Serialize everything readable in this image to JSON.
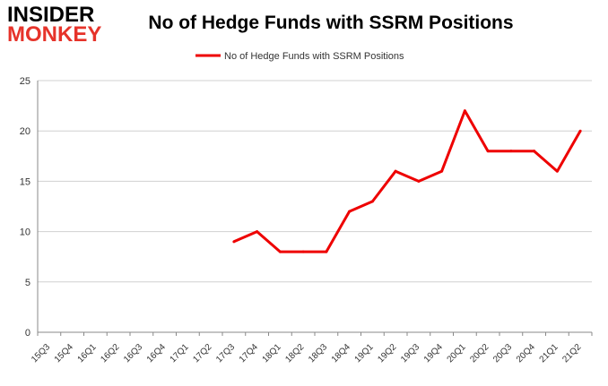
{
  "logo": {
    "line1": "INSIDER",
    "line2": "MONKEY"
  },
  "colors": {
    "series": "#ee0000",
    "logo_red": "#e6332a",
    "grid": "#d0d0d0",
    "axis": "#888888"
  },
  "chart_data": {
    "type": "line",
    "title": "No of Hedge Funds with SSRM Positions",
    "xlabel": "",
    "ylabel": "",
    "ylim": [
      0,
      25
    ],
    "yticks": [
      0,
      5,
      10,
      15,
      20,
      25
    ],
    "grid": true,
    "legend_position": "top-center",
    "categories": [
      "15Q3",
      "15Q4",
      "16Q1",
      "16Q2",
      "16Q3",
      "16Q4",
      "17Q1",
      "17Q2",
      "17Q3",
      "17Q4",
      "18Q1",
      "18Q2",
      "18Q3",
      "18Q4",
      "19Q1",
      "19Q2",
      "19Q3",
      "19Q4",
      "20Q1",
      "20Q2",
      "20Q3",
      "20Q4",
      "21Q1",
      "21Q2"
    ],
    "series": [
      {
        "name": "No of Hedge Funds with SSRM Positions",
        "values": [
          null,
          null,
          null,
          null,
          null,
          null,
          null,
          null,
          9,
          10,
          8,
          8,
          8,
          12,
          13,
          16,
          15,
          16,
          22,
          18,
          18,
          18,
          16,
          20
        ]
      }
    ]
  }
}
